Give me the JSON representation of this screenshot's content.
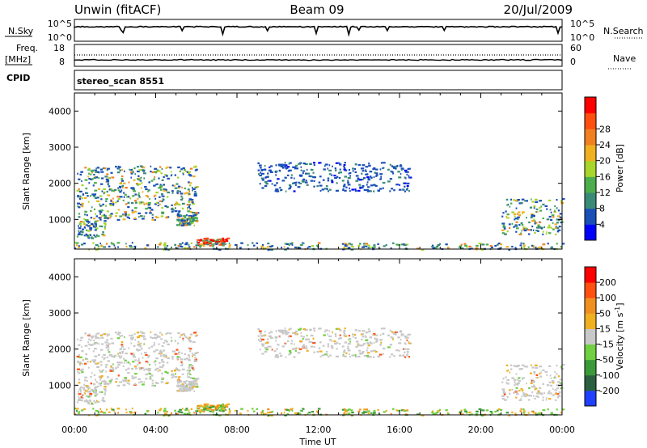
{
  "header": {
    "station": "Unwin (fitACF)",
    "beam": "Beam 09",
    "date": "20/Jul/2009"
  },
  "status_panels": {
    "nsky_label": "N.Sky",
    "nsky_ticks": [
      "10^5",
      "10^0"
    ],
    "nsearch_ticks": [
      "10^5",
      "10^0"
    ],
    "nsearch_label": "N.Search",
    "freq_label": "Freq.",
    "freq_unit": "[MHz]",
    "freq_ticks": [
      "18",
      "8"
    ],
    "nave_ticks": [
      "60",
      "0"
    ],
    "nave_label": "Nave",
    "cpid_label": "CPID",
    "cpid_value": "stereo_scan 8551"
  },
  "chart_data": [
    {
      "type": "heatmap",
      "name": "power",
      "ylabel": "Slant Range [km]",
      "yticks": [
        "1000",
        "2000",
        "3000",
        "4000"
      ],
      "ylim": [
        180,
        4500
      ],
      "xlim_hours": [
        0,
        24
      ],
      "colorbar": {
        "label": "Power [dB]",
        "ticks": [
          "4",
          "8",
          "12",
          "16",
          "20",
          "24",
          "28"
        ],
        "colors": [
          "#0000ff",
          "#1a4fb8",
          "#3a8a78",
          "#4cae4c",
          "#a8d62a",
          "#f0b020",
          "#f08020",
          "#ff5010",
          "#ff0000"
        ]
      },
      "echo_regions": [
        {
          "t0": 0.1,
          "t1": 6.0,
          "r0": 1000,
          "r1": 2500,
          "level": "mixed"
        },
        {
          "t0": 0.1,
          "t1": 1.5,
          "r0": 500,
          "r1": 1000,
          "level": "mixed"
        },
        {
          "t0": 5.0,
          "t1": 6.0,
          "r0": 850,
          "r1": 1150,
          "level": "mixed"
        },
        {
          "t0": 6.0,
          "t1": 7.5,
          "r0": 300,
          "r1": 500,
          "level": "high"
        },
        {
          "t0": 9.0,
          "t1": 16.5,
          "r0": 1800,
          "r1": 2600,
          "level": "low"
        },
        {
          "t0": 0.0,
          "t1": 24.0,
          "r0": 180,
          "r1": 380,
          "level": "mixed"
        },
        {
          "t0": 21.0,
          "t1": 24.0,
          "r0": 600,
          "r1": 1600,
          "level": "mixed"
        }
      ]
    },
    {
      "type": "heatmap",
      "name": "velocity",
      "ylabel": "Slant Range [km]",
      "yticks": [
        "1000",
        "2000",
        "3000",
        "4000"
      ],
      "ylim": [
        180,
        4500
      ],
      "xlim_hours": [
        0,
        24
      ],
      "colorbar": {
        "label": "Velocity [m s^-1]",
        "ticks": [
          "200",
          "100",
          "50",
          "15",
          "-15",
          "-50",
          "-100",
          "-200"
        ],
        "colors": [
          "#2040ff",
          "#2a6040",
          "#3a9a3a",
          "#70d040",
          "#c8c8c8",
          "#f0b020",
          "#f09020",
          "#ff5010",
          "#ff0000"
        ]
      },
      "xticks": [
        "00:00",
        "04:00",
        "08:00",
        "12:00",
        "16:00",
        "20:00",
        "00:00"
      ],
      "xlabel": "Time UT"
    }
  ]
}
